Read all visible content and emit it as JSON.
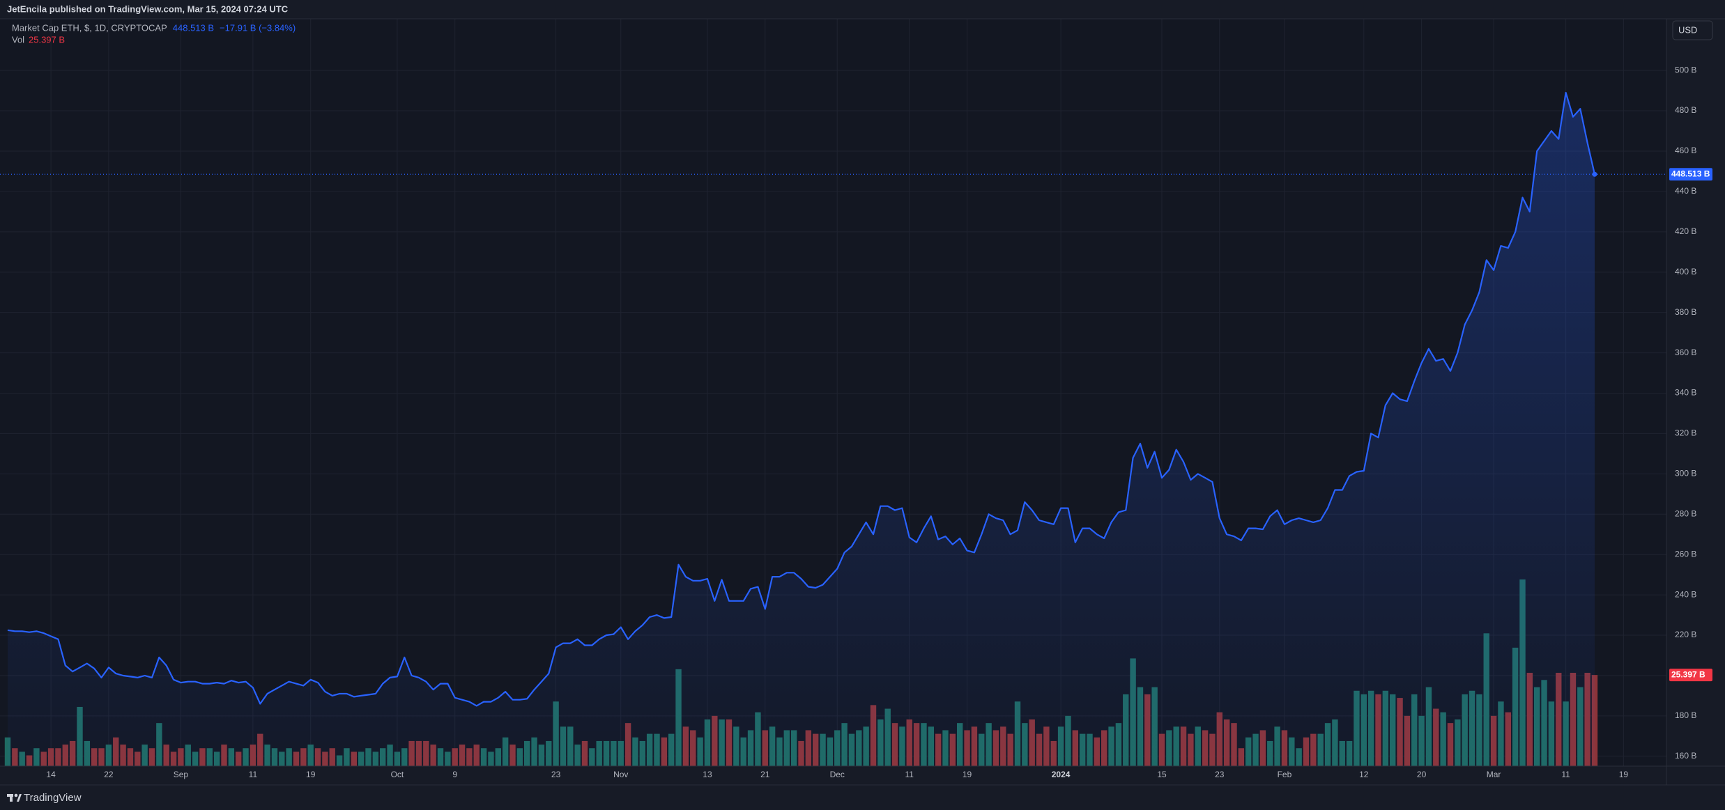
{
  "header": {
    "publisher": "JetEncila published on TradingView.com, Mar 15, 2024 07:24 UTC",
    "currency": "USD",
    "brand": "TradingView"
  },
  "chart_data": {
    "type": "line",
    "categories": [
      null,
      null,
      null,
      null,
      null,
      null,
      "14",
      null,
      null,
      null,
      null,
      null,
      null,
      null,
      "22",
      null,
      null,
      null,
      null,
      null,
      null,
      null,
      null,
      null,
      "Sep",
      null,
      null,
      null,
      null,
      null,
      null,
      null,
      null,
      null,
      "11",
      null,
      null,
      null,
      null,
      null,
      null,
      null,
      "19",
      null,
      null,
      null,
      null,
      null,
      null,
      null,
      null,
      null,
      null,
      null,
      "Oct",
      null,
      null,
      null,
      null,
      null,
      null,
      null,
      "9",
      null,
      null,
      null,
      null,
      null,
      null,
      null,
      null,
      null,
      null,
      null,
      null,
      null,
      "23",
      null,
      null,
      null,
      null,
      null,
      null,
      null,
      null,
      "Nov",
      null,
      null,
      null,
      null,
      null,
      null,
      null,
      null,
      null,
      null,
      null,
      "13",
      null,
      null,
      null,
      null,
      null,
      null,
      null,
      "21",
      null,
      null,
      null,
      null,
      null,
      null,
      null,
      null,
      null,
      "Dec",
      null,
      null,
      null,
      null,
      null,
      null,
      null,
      null,
      null,
      "11",
      null,
      null,
      null,
      null,
      null,
      null,
      null,
      "19",
      null,
      null,
      null,
      null,
      null,
      null,
      null,
      null,
      null,
      null,
      null,
      null,
      "2024",
      null,
      null,
      null,
      null,
      null,
      null,
      null,
      null,
      null,
      null,
      null,
      null,
      null,
      "15",
      null,
      null,
      null,
      null,
      null,
      null,
      null,
      "23",
      null,
      null,
      null,
      null,
      null,
      null,
      null,
      null,
      "Feb",
      null,
      null,
      null,
      null,
      null,
      null,
      null,
      null,
      null,
      null,
      "12",
      null,
      null,
      null,
      null,
      null,
      null,
      null,
      "20",
      null,
      null,
      null,
      null,
      null,
      null,
      null,
      null,
      null,
      "Mar",
      null,
      null,
      null,
      null,
      null,
      null,
      null,
      null,
      null,
      "11",
      null,
      null,
      null,
      null,
      null,
      null,
      null,
      "19"
    ],
    "series": [
      {
        "name": "Market Cap ETH, $, 1D, CRYPTOCAP",
        "color": "#2962ff",
        "values": [
          222.5,
          222,
          222,
          221.5,
          222,
          221,
          219.5,
          218,
          205,
          202,
          204,
          206,
          203.5,
          199,
          204,
          201,
          200,
          199.5,
          199,
          200,
          199,
          209,
          205,
          198,
          196.5,
          197,
          197,
          196,
          196,
          196.5,
          196,
          197.5,
          196.5,
          197,
          194,
          186,
          191,
          193,
          195,
          197,
          196,
          195,
          198,
          196.5,
          192,
          190,
          191,
          191,
          189.5,
          190,
          190.5,
          191,
          196,
          199,
          199.5,
          209,
          200,
          199,
          197,
          193,
          196,
          196,
          189,
          188,
          187,
          185,
          187,
          187,
          189,
          192,
          188,
          188,
          188.5,
          193,
          197,
          201,
          214,
          216,
          216,
          218,
          215,
          215,
          218,
          220,
          220.5,
          224,
          218,
          222,
          225,
          229,
          230,
          228.5,
          229,
          255,
          249,
          247,
          247,
          248,
          237,
          247.5,
          237,
          237,
          237,
          243,
          244,
          233,
          249,
          249,
          251,
          251,
          248,
          244,
          243.5,
          245,
          249,
          253,
          261,
          264,
          270,
          276,
          270,
          284,
          284,
          282,
          283,
          268.5,
          266,
          273,
          279,
          267.5,
          269,
          265,
          268,
          262,
          261,
          270,
          280,
          278,
          277,
          270,
          272,
          286,
          282,
          277,
          276,
          275,
          283,
          283,
          266,
          273,
          273,
          270,
          268,
          276,
          281,
          282,
          308,
          315,
          303,
          311,
          298,
          302,
          312,
          306,
          297,
          300,
          298,
          296,
          278,
          270,
          269,
          267,
          273,
          273,
          272.5,
          279,
          282,
          275,
          277,
          278,
          277,
          276,
          277,
          283,
          292,
          292,
          299,
          301,
          301.5,
          320,
          318,
          334,
          340,
          337,
          336,
          346,
          355,
          362,
          356,
          357,
          351,
          360,
          374,
          381,
          390,
          406,
          401,
          413,
          412,
          420,
          437,
          430,
          460,
          465,
          470,
          466,
          489,
          477,
          481,
          464,
          448.513,
          null,
          null,
          null,
          null
        ]
      }
    ],
    "volume": {
      "name": "Vol",
      "up_color": "#1f6b63",
      "down_color": "#8d3439",
      "values": [
        8,
        5,
        4,
        3,
        5,
        4,
        5,
        5,
        6,
        7,
        16.5,
        7,
        5,
        5,
        6,
        8,
        6,
        5,
        4,
        6,
        5,
        12,
        6,
        4,
        5,
        6,
        4,
        5,
        5,
        4,
        6,
        5,
        4,
        5,
        6,
        9,
        6,
        5,
        4,
        5,
        4,
        5,
        6,
        5,
        4,
        5,
        3,
        5,
        4,
        4,
        5,
        4,
        5,
        6,
        4,
        5,
        7,
        7,
        7,
        6,
        5,
        4,
        5,
        6,
        5,
        6,
        5,
        4,
        5,
        8,
        6,
        5,
        7,
        8,
        6,
        7,
        18,
        11,
        11,
        6,
        7,
        5,
        7,
        7,
        7,
        7,
        12,
        8,
        7,
        9,
        9,
        8,
        9,
        27,
        11,
        10,
        8,
        13,
        14,
        13,
        13,
        11,
        8,
        10,
        15,
        10,
        11,
        8,
        10,
        10,
        7,
        10,
        9,
        9,
        8,
        10,
        12,
        9,
        10,
        11,
        17,
        13,
        16,
        12,
        11,
        13,
        12,
        12,
        11,
        9,
        10,
        9,
        12,
        10,
        11,
        9,
        12,
        10,
        11,
        9,
        18,
        12,
        13,
        9,
        11,
        7,
        11,
        14,
        10,
        9,
        9,
        8,
        10,
        11,
        12,
        20,
        30,
        22,
        20,
        22,
        9,
        10,
        11,
        11,
        9,
        11,
        10,
        9,
        15,
        13,
        12,
        5,
        8,
        9,
        10,
        7,
        11,
        10,
        8,
        5,
        8,
        9,
        9,
        12,
        13,
        7,
        7,
        21,
        20,
        21,
        20,
        21,
        20,
        19,
        14,
        20,
        14,
        22,
        16,
        15,
        12,
        13,
        20,
        21,
        20,
        37,
        14,
        18,
        15,
        33,
        52,
        26,
        22,
        24,
        18,
        26,
        18,
        26,
        22,
        26,
        25.397,
        null,
        null,
        null,
        null
      ]
    },
    "legend": {
      "last": "448.513 B",
      "change": "−17.91 B (−3.84%)",
      "vol_last": "25.397 B"
    },
    "ylim": [
      155.1,
      525.6
    ],
    "yticks": [
      {
        "value": 160,
        "label": "160 B"
      },
      {
        "value": 180,
        "label": "180 B"
      },
      {
        "value": 200,
        "label": "200 B"
      },
      {
        "value": 220,
        "label": "220 B"
      },
      {
        "value": 240,
        "label": "240 B"
      },
      {
        "value": 260,
        "label": "260 B"
      },
      {
        "value": 280,
        "label": "280 B"
      },
      {
        "value": 300,
        "label": "300 B"
      },
      {
        "value": 320,
        "label": "320 B"
      },
      {
        "value": 340,
        "label": "340 B"
      },
      {
        "value": 360,
        "label": "360 B"
      },
      {
        "value": 380,
        "label": "380 B"
      },
      {
        "value": 400,
        "label": "400 B"
      },
      {
        "value": 420,
        "label": "420 B"
      },
      {
        "value": 440,
        "label": "440 B"
      },
      {
        "value": 460,
        "label": "460 B"
      },
      {
        "value": 480,
        "label": "480 B"
      },
      {
        "value": 500,
        "label": "500 B"
      }
    ],
    "grid": true
  }
}
